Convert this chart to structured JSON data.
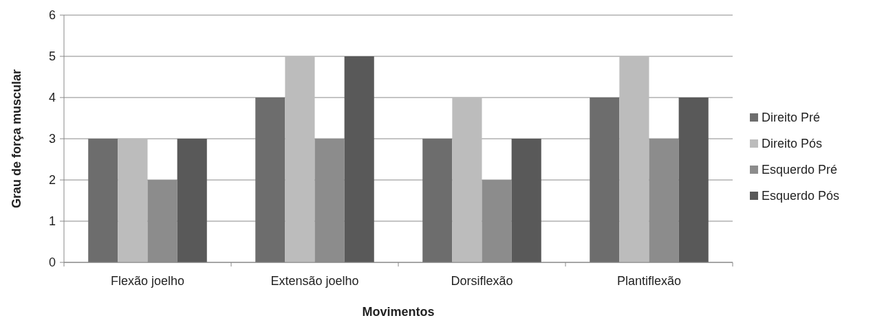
{
  "chart_data": {
    "type": "bar",
    "xlabel": "Movimentos",
    "ylabel": "Grau de força muscular",
    "categories": [
      "Flexão joelho",
      "Extensão joelho",
      "Dorsiflexão",
      "Plantiflexão"
    ],
    "series": [
      {
        "name": "Direito Pré",
        "color": "#6d6d6d",
        "values": [
          3,
          4,
          3,
          4
        ]
      },
      {
        "name": "Direito Pós",
        "color": "#bcbcbc",
        "values": [
          3,
          5,
          4,
          5
        ]
      },
      {
        "name": "Esquerdo Pré",
        "color": "#8c8c8c",
        "values": [
          2,
          3,
          2,
          3
        ]
      },
      {
        "name": "Esquerdo Pós",
        "color": "#595959",
        "values": [
          3,
          5,
          3,
          4
        ]
      }
    ],
    "ylim": [
      0,
      6
    ],
    "yticks": [
      0,
      1,
      2,
      3,
      4,
      5,
      6
    ],
    "grid": "y",
    "legend": "right"
  }
}
